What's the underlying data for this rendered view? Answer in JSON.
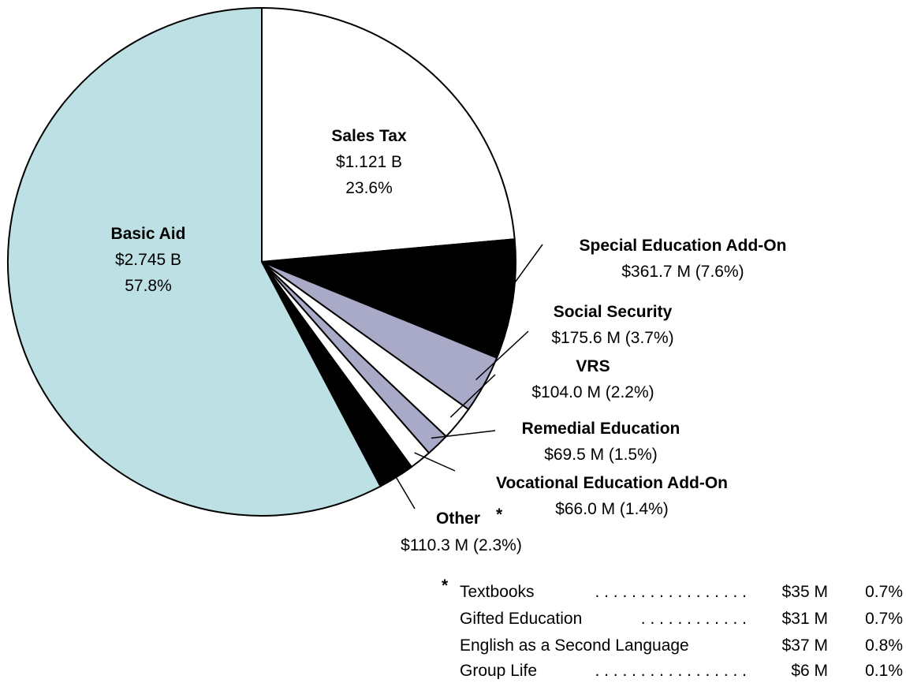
{
  "chart_data": {
    "type": "pie",
    "slices": [
      {
        "name": "Sales Tax",
        "amount": "$1.121 B",
        "percent": "23.6%",
        "value": 23.6,
        "color": "#ffffff"
      },
      {
        "name": "Special Education Add-On",
        "amount": "$361.7 M (7.6%)",
        "percent": "7.6%",
        "value": 7.6,
        "color": "#000000"
      },
      {
        "name": "Social Security",
        "amount": "$175.6 M (3.7%)",
        "percent": "3.7%",
        "value": 3.7,
        "color": "#a9a9c8"
      },
      {
        "name": "VRS",
        "amount": "$104.0 M (2.2%)",
        "percent": "2.2%",
        "value": 2.2,
        "color": "#ffffff"
      },
      {
        "name": "Remedial Education",
        "amount": "$69.5 M (1.5%)",
        "percent": "1.5%",
        "value": 1.5,
        "color": "#a9a9c8"
      },
      {
        "name": "Vocational Education Add-On",
        "amount": "$66.0 M (1.4%)",
        "percent": "1.4%",
        "value": 1.4,
        "color": "#ffffff"
      },
      {
        "name": "Other",
        "amount": "$110.3 M (2.3%)",
        "percent": "2.3%",
        "value": 2.3,
        "color": "#000000"
      },
      {
        "name": "Basic Aid",
        "amount": "$2.745 B",
        "percent": "57.8%",
        "value": 57.8,
        "color": "#bce0e3"
      }
    ],
    "other_marker": "*",
    "footnote": [
      {
        "label": "Textbooks",
        "dots": ". . . . . . . . . . . . . . . . .",
        "amount": "$35 M",
        "percent": "0.7%"
      },
      {
        "label": "Gifted Education",
        "dots": ". . . . . . . . . . . .",
        "amount": "$31 M",
        "percent": "0.7%"
      },
      {
        "label": "English as a Second Language",
        "dots": "",
        "amount": "$37 M",
        "percent": "0.8%"
      },
      {
        "label": "Group Life",
        "dots": ". . . . . . . . . . . . . . . . .",
        "amount": "$6 M",
        "percent": "0.1%"
      }
    ]
  }
}
